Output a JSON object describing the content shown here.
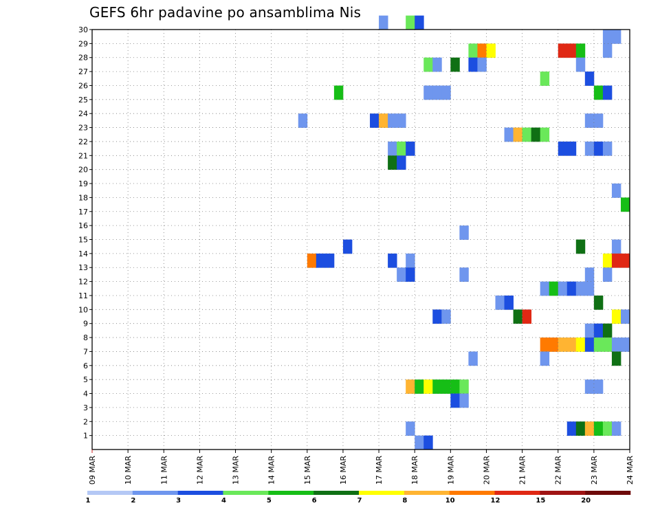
{
  "chart_data": {
    "type": "heatmap",
    "title": "GEFS 6hr padavine po ansamblima Nis",
    "y_ticks": [
      "1",
      "2",
      "3",
      "4",
      "5",
      "6",
      "7",
      "8",
      "9",
      "10",
      "11",
      "12",
      "13",
      "14",
      "15",
      "16",
      "17",
      "18",
      "19",
      "20",
      "21",
      "22",
      "23",
      "24",
      "25",
      "26",
      "27",
      "28",
      "29",
      "30"
    ],
    "x_ticks": [
      "09 MAR",
      "10 MAR",
      "11 MAR",
      "12 MAR",
      "13 MAR",
      "14 MAR",
      "15 MAR",
      "16 MAR",
      "17 MAR",
      "18 MAR",
      "19 MAR",
      "20 MAR",
      "21 MAR",
      "22 MAR",
      "23 MAR",
      "24 MAR"
    ],
    "x_range": [
      0,
      60
    ],
    "y_range": [
      0,
      30
    ],
    "colorbar": {
      "colors": [
        "#b4c8f5",
        "#6f96ee",
        "#1c4ee0",
        "#6ae85a",
        "#16be16",
        "#0f7014",
        "#ffff00",
        "#ffb432",
        "#ff7a00",
        "#e02814",
        "#a01414",
        "#6e0a0a"
      ],
      "labels": [
        "1",
        "2",
        "3",
        "4",
        "5",
        "6",
        "7",
        "8",
        "10",
        "12",
        "15",
        "20"
      ]
    },
    "cells": [
      [
        30,
        32,
        1
      ],
      [
        30,
        35,
        3
      ],
      [
        30,
        36,
        2
      ],
      [
        29,
        57,
        1
      ],
      [
        29,
        58,
        1
      ],
      [
        28,
        42,
        3
      ],
      [
        28,
        43,
        8
      ],
      [
        28,
        44,
        6
      ],
      [
        28,
        52,
        9
      ],
      [
        28,
        53,
        9
      ],
      [
        28,
        54,
        4
      ],
      [
        28,
        57,
        1
      ],
      [
        27,
        37,
        3
      ],
      [
        27,
        38,
        1
      ],
      [
        27,
        40,
        5
      ],
      [
        27,
        42,
        2
      ],
      [
        27,
        43,
        1
      ],
      [
        27,
        54,
        1
      ],
      [
        26,
        50,
        3
      ],
      [
        26,
        55,
        2
      ],
      [
        25,
        27,
        4
      ],
      [
        25,
        37,
        1
      ],
      [
        25,
        38,
        1
      ],
      [
        25,
        39,
        1
      ],
      [
        25,
        56,
        4
      ],
      [
        25,
        57,
        2
      ],
      [
        23,
        23,
        1
      ],
      [
        23,
        31,
        2
      ],
      [
        23,
        32,
        7
      ],
      [
        23,
        33,
        1
      ],
      [
        23,
        34,
        1
      ],
      [
        23,
        55,
        1
      ],
      [
        23,
        56,
        1
      ],
      [
        22,
        46,
        1
      ],
      [
        22,
        47,
        7
      ],
      [
        22,
        48,
        3
      ],
      [
        22,
        49,
        5
      ],
      [
        22,
        50,
        3
      ],
      [
        21,
        33,
        1
      ],
      [
        21,
        34,
        3
      ],
      [
        21,
        35,
        2
      ],
      [
        21,
        52,
        2
      ],
      [
        21,
        53,
        2
      ],
      [
        21,
        55,
        1
      ],
      [
        21,
        56,
        2
      ],
      [
        21,
        57,
        1
      ],
      [
        20,
        33,
        5
      ],
      [
        20,
        34,
        2
      ],
      [
        18,
        58,
        1
      ],
      [
        17,
        59,
        4
      ],
      [
        15,
        41,
        1
      ],
      [
        14,
        28,
        2
      ],
      [
        14,
        54,
        5
      ],
      [
        14,
        58,
        1
      ],
      [
        13,
        24,
        8
      ],
      [
        13,
        25,
        2
      ],
      [
        13,
        26,
        2
      ],
      [
        13,
        33,
        2
      ],
      [
        13,
        35,
        1
      ],
      [
        13,
        57,
        6
      ],
      [
        13,
        58,
        9
      ],
      [
        13,
        59,
        9
      ],
      [
        12,
        34,
        1
      ],
      [
        12,
        35,
        2
      ],
      [
        12,
        41,
        1
      ],
      [
        12,
        55,
        1
      ],
      [
        12,
        57,
        1
      ],
      [
        11,
        50,
        1
      ],
      [
        11,
        51,
        4
      ],
      [
        11,
        52,
        1
      ],
      [
        11,
        53,
        2
      ],
      [
        11,
        54,
        1
      ],
      [
        11,
        55,
        1
      ],
      [
        10,
        45,
        1
      ],
      [
        10,
        46,
        2
      ],
      [
        10,
        56,
        5
      ],
      [
        9,
        38,
        2
      ],
      [
        9,
        39,
        1
      ],
      [
        9,
        47,
        5
      ],
      [
        9,
        48,
        9
      ],
      [
        9,
        58,
        6
      ],
      [
        9,
        59,
        1
      ],
      [
        8,
        55,
        1
      ],
      [
        8,
        56,
        2
      ],
      [
        8,
        57,
        5
      ],
      [
        7,
        50,
        8
      ],
      [
        7,
        51,
        8
      ],
      [
        7,
        52,
        7
      ],
      [
        7,
        53,
        7
      ],
      [
        7,
        54,
        6
      ],
      [
        7,
        55,
        2
      ],
      [
        7,
        56,
        3
      ],
      [
        7,
        57,
        3
      ],
      [
        7,
        58,
        1
      ],
      [
        7,
        59,
        1
      ],
      [
        6,
        42,
        1
      ],
      [
        6,
        50,
        1
      ],
      [
        6,
        58,
        5
      ],
      [
        4,
        35,
        7
      ],
      [
        4,
        36,
        4
      ],
      [
        4,
        37,
        6
      ],
      [
        4,
        38,
        4
      ],
      [
        4,
        39,
        4
      ],
      [
        4,
        40,
        4
      ],
      [
        4,
        41,
        3
      ],
      [
        4,
        55,
        1
      ],
      [
        4,
        56,
        1
      ],
      [
        3,
        40,
        2
      ],
      [
        3,
        41,
        1
      ],
      [
        1,
        35,
        1
      ],
      [
        1,
        53,
        2
      ],
      [
        1,
        54,
        5
      ],
      [
        1,
        55,
        7
      ],
      [
        1,
        56,
        4
      ],
      [
        1,
        57,
        3
      ],
      [
        1,
        58,
        1
      ],
      [
        0,
        36,
        1
      ],
      [
        0,
        37,
        2
      ]
    ]
  }
}
